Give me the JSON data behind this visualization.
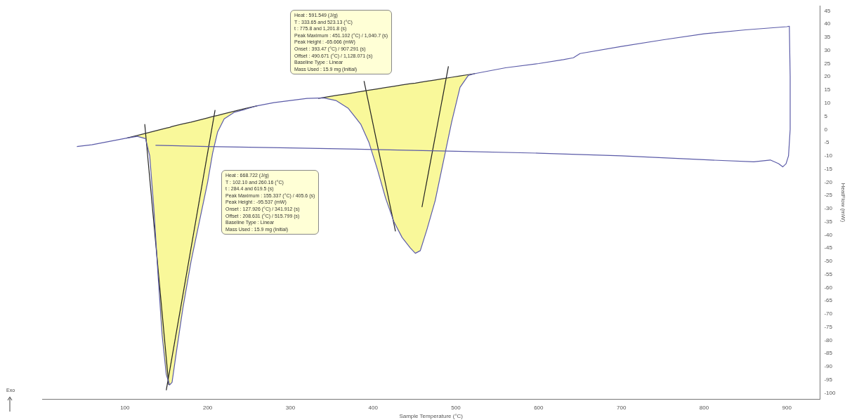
{
  "chart_data": {
    "type": "line",
    "xlabel": "Sample Temperature (°C)",
    "ylabel": "HeatFlow (mW)",
    "xlim": [
      0,
      940
    ],
    "ylim": [
      -102.5,
      47
    ],
    "xticks": [
      100,
      200,
      300,
      400,
      500,
      600,
      700,
      800,
      900
    ],
    "yticks": [
      -100,
      -95,
      -90,
      -85,
      -80,
      -75,
      -70,
      -65,
      -60,
      -55,
      -50,
      -45,
      -40,
      -35,
      -30,
      -25,
      -20,
      -15,
      -10,
      -5,
      0,
      5,
      10,
      15,
      20,
      25,
      30,
      35,
      40,
      45
    ],
    "grid": false,
    "legend": false,
    "marker": "none",
    "line_style": "solid",
    "annotations": [
      "Heat : 591.549 (J/g)\nT : 333.65 and 523.13 (°C)\nt : 775.8 and 1,201.8 (s)\nPeak Maximum : 451.102 (°C) / 1,040.7 (s)\nPeak Height : -65.666 (mW)\nOnset : 393.47 (°C) / 907.291 (s)\nOffset : 490.671 (°C) / 1,128.071 (s)\nBaseline Type : Linear\nMass Used : 15.9 mg (Initial)",
      "Heat : 668.722 (J/g)\nT : 102.10 and 260.16 (°C)\nt : 284.4 and 619.5 (s)\nPeak Maximum : 155.337 (°C) / 405.6 (s)\nPeak Height : -95.537 (mW)\nOnset : 127.926 (°C) / 341.912 (s)\nOffset : 208.631 (°C) / 515.799 (s)\nBaseline Type : Linear\nMass Used : 15.9 mg (Initial)",
      "Exo"
    ],
    "series": [
      {
        "type": "line",
        "color": "#5b5ba8",
        "x": [
          42,
          60,
          80,
          102.1,
          115,
          125,
          130,
          135,
          140,
          145,
          150,
          154,
          157,
          162,
          170,
          180,
          190,
          200,
          206,
          212,
          220,
          232,
          245,
          260,
          280,
          300,
          320,
          340,
          355,
          370,
          385,
          395,
          405,
          415,
          425,
          435,
          445,
          451,
          457,
          465,
          475,
          485,
          495,
          505,
          515,
          523.13,
          560,
          600,
          630,
          642,
          650,
          700,
          750,
          800,
          850,
          900,
          903,
          904,
          904,
          902,
          899,
          895,
          890,
          880,
          860,
          800,
          700,
          600,
          500,
          400,
          300,
          200,
          137
        ],
        "values": [
          -6.5,
          -5.8,
          -4.6,
          -3.3,
          -2.6,
          -3.5,
          -10,
          -30,
          -55,
          -78,
          -93,
          -97,
          -96,
          -85,
          -68,
          -50,
          -35,
          -20,
          -9,
          -1,
          4,
          6.5,
          7.6,
          9,
          10.2,
          11,
          11.8,
          12,
          11,
          8,
          2,
          -5,
          -15,
          -26,
          -35,
          -41,
          -45,
          -47,
          -46,
          -38,
          -27,
          -12,
          3,
          16,
          20.5,
          21.2,
          23.4,
          25,
          26.5,
          27.2,
          28.8,
          31.5,
          34,
          36.3,
          37.8,
          39,
          39.2,
          20,
          0,
          -10,
          -13,
          -14.2,
          -13,
          -11.6,
          -12.3,
          -11.5,
          -10,
          -9,
          -8.3,
          -7.6,
          -7,
          -6.5,
          -6
        ]
      },
      {
        "type": "line",
        "color": "#333333",
        "x": [
          102.1,
          115,
          125,
          130,
          135,
          140,
          145,
          150,
          154,
          157,
          162,
          170,
          180,
          190,
          200,
          206,
          212,
          220,
          232,
          245,
          260
        ],
        "values": [
          -3.3,
          -2.3,
          -1.5,
          -1.1,
          -0.7,
          -0.3,
          0.1,
          0.5,
          0.8,
          1.1,
          1.5,
          2.1,
          2.8,
          3.6,
          4.4,
          4.9,
          5.3,
          6,
          6.9,
          7.9,
          9
        ],
        "lower": [
          -3.3,
          -2.6,
          -3.5,
          -10,
          -30,
          -55,
          -78,
          -93,
          -97,
          -96,
          -85,
          -68,
          -50,
          -35,
          -20,
          -9,
          -1,
          4,
          6.5,
          7.6,
          9
        ],
        "upper": [
          -3.3,
          -2.3,
          -1.5,
          -1.1,
          -0.7,
          -0.3,
          0.1,
          0.5,
          0.8,
          1.1,
          1.5,
          2.1,
          2.8,
          3.6,
          4.4,
          4.9,
          5.3,
          6,
          6.9,
          7.9,
          9
        ]
      },
      {
        "type": "line",
        "color": "#333333",
        "x": [
          333.65,
          340,
          355,
          370,
          385,
          395,
          405,
          415,
          425,
          435,
          445,
          451,
          457,
          465,
          475,
          485,
          495,
          505,
          515,
          523.13
        ],
        "values": [
          11.8,
          12.1,
          12.9,
          13.6,
          14.4,
          14.9,
          15.4,
          15.9,
          16.4,
          16.9,
          17.4,
          17.6,
          17.9,
          18.3,
          18.8,
          19.3,
          19.8,
          20.3,
          20.8,
          21.2
        ],
        "lower": [
          11.8,
          12,
          11,
          8,
          2,
          -5,
          -15,
          -26,
          -35,
          -41,
          -45,
          -47,
          -46,
          -38,
          -27,
          -12,
          3,
          16,
          20.5,
          21.2
        ],
        "upper": [
          11.8,
          12.1,
          12.9,
          13.6,
          14.4,
          14.9,
          15.4,
          15.9,
          16.4,
          16.9,
          17.4,
          17.6,
          17.9,
          18.3,
          18.8,
          19.3,
          19.8,
          20.3,
          20.8,
          21.2
        ]
      },
      {
        "type": "line",
        "color": "#222222",
        "x": [
          124,
          153
        ],
        "values": [
          2,
          -97
        ]
      },
      {
        "type": "line",
        "color": "#222222",
        "x": [
          150,
          209
        ],
        "values": [
          -99,
          7.4
        ]
      },
      {
        "type": "line",
        "color": "#222222",
        "x": [
          389,
          427
        ],
        "values": [
          18.4,
          -38.7
        ]
      },
      {
        "type": "line",
        "color": "#222222",
        "x": [
          491,
          459
        ],
        "values": [
          24,
          -29.5
        ]
      }
    ]
  }
}
